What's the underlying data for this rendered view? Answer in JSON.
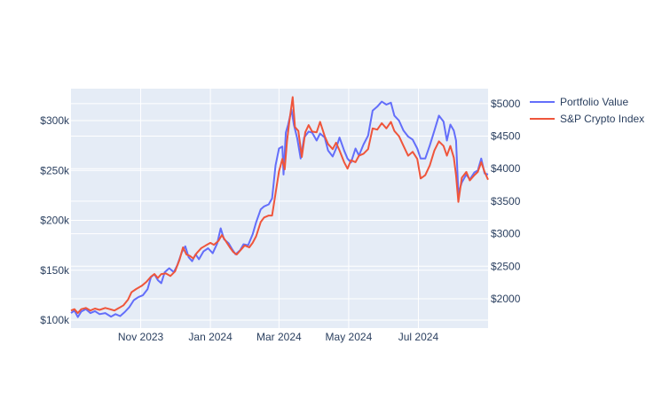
{
  "chart_data": {
    "type": "line",
    "title": "",
    "xlabel": "",
    "ylabel": "",
    "x_range": [
      "2023-09-01",
      "2024-08-31"
    ],
    "x_ticks": [
      "2023-11-01",
      "2024-01-01",
      "2024-03-01",
      "2024-05-01",
      "2024-07-01"
    ],
    "x_tick_labels": [
      "Nov 2023",
      "Jan 2024",
      "Mar 2024",
      "May 2024",
      "Jul 2024"
    ],
    "y_left": {
      "range": [
        92000,
        332000
      ],
      "ticks": [
        100000,
        150000,
        200000,
        250000,
        300000
      ],
      "tick_labels": [
        "$100k",
        "$150k",
        "$200k",
        "$250k",
        "$300k"
      ]
    },
    "y_right": {
      "range": [
        1550,
        5230
      ],
      "ticks": [
        2000,
        2500,
        3000,
        3500,
        4000,
        4500,
        5000
      ],
      "tick_labels": [
        "$2000",
        "$2500",
        "$3000",
        "$3500",
        "$4000",
        "$4500",
        "$5000"
      ]
    },
    "legend_position": "top-right",
    "grid": true,
    "series": [
      {
        "name": "Portfolio Value",
        "axis": "left",
        "color": "#636efa",
        "points": [
          [
            "2023-09-01",
            107000
          ],
          [
            "2023-09-04",
            109500
          ],
          [
            "2023-09-07",
            103000
          ],
          [
            "2023-09-10",
            108500
          ],
          [
            "2023-09-14",
            111000
          ],
          [
            "2023-09-18",
            107000
          ],
          [
            "2023-09-22",
            109000
          ],
          [
            "2023-09-26",
            106000
          ],
          [
            "2023-10-01",
            107000
          ],
          [
            "2023-10-06",
            103500
          ],
          [
            "2023-10-10",
            106000
          ],
          [
            "2023-10-14",
            104000
          ],
          [
            "2023-10-18",
            108000
          ],
          [
            "2023-10-22",
            113000
          ],
          [
            "2023-10-26",
            120000
          ],
          [
            "2023-10-30",
            123000
          ],
          [
            "2023-11-03",
            125000
          ],
          [
            "2023-11-07",
            131000
          ],
          [
            "2023-11-10",
            143000
          ],
          [
            "2023-11-13",
            146000
          ],
          [
            "2023-11-16",
            140000
          ],
          [
            "2023-11-19",
            137000
          ],
          [
            "2023-11-22",
            148000
          ],
          [
            "2023-11-26",
            152000
          ],
          [
            "2023-11-30",
            148000
          ],
          [
            "2023-12-03",
            155000
          ],
          [
            "2023-12-07",
            168000
          ],
          [
            "2023-12-10",
            174000
          ],
          [
            "2023-12-13",
            163000
          ],
          [
            "2023-12-16",
            159000
          ],
          [
            "2023-12-19",
            166000
          ],
          [
            "2023-12-22",
            161000
          ],
          [
            "2023-12-26",
            169000
          ],
          [
            "2023-12-30",
            172000
          ],
          [
            "2024-01-03",
            167000
          ],
          [
            "2024-01-07",
            177000
          ],
          [
            "2024-01-10",
            192000
          ],
          [
            "2024-01-13",
            181000
          ],
          [
            "2024-01-17",
            177000
          ],
          [
            "2024-01-20",
            171000
          ],
          [
            "2024-01-23",
            166000
          ],
          [
            "2024-01-27",
            170000
          ],
          [
            "2024-01-30",
            176000
          ],
          [
            "2024-02-03",
            175000
          ],
          [
            "2024-02-07",
            186000
          ],
          [
            "2024-02-10",
            198000
          ],
          [
            "2024-02-14",
            211000
          ],
          [
            "2024-02-17",
            214000
          ],
          [
            "2024-02-21",
            216000
          ],
          [
            "2024-02-24",
            222000
          ],
          [
            "2024-02-27",
            255000
          ],
          [
            "2024-03-01",
            272000
          ],
          [
            "2024-03-04",
            274000
          ],
          [
            "2024-03-05",
            246000
          ],
          [
            "2024-03-07",
            288000
          ],
          [
            "2024-03-09",
            296000
          ],
          [
            "2024-03-12",
            311000
          ],
          [
            "2024-03-14",
            296000
          ],
          [
            "2024-03-17",
            282000
          ],
          [
            "2024-03-20",
            262000
          ],
          [
            "2024-03-23",
            283000
          ],
          [
            "2024-03-27",
            289000
          ],
          [
            "2024-03-30",
            288000
          ],
          [
            "2024-04-03",
            280000
          ],
          [
            "2024-04-06",
            287000
          ],
          [
            "2024-04-10",
            283000
          ],
          [
            "2024-04-13",
            270000
          ],
          [
            "2024-04-17",
            264000
          ],
          [
            "2024-04-20",
            272000
          ],
          [
            "2024-04-23",
            283000
          ],
          [
            "2024-04-27",
            270000
          ],
          [
            "2024-04-30",
            262000
          ],
          [
            "2024-05-03",
            258000
          ],
          [
            "2024-05-07",
            272000
          ],
          [
            "2024-05-10",
            265000
          ],
          [
            "2024-05-14",
            276000
          ],
          [
            "2024-05-18",
            285000
          ],
          [
            "2024-05-22",
            310000
          ],
          [
            "2024-05-26",
            314000
          ],
          [
            "2024-05-30",
            319000
          ],
          [
            "2024-06-03",
            316000
          ],
          [
            "2024-06-07",
            318000
          ],
          [
            "2024-06-10",
            305000
          ],
          [
            "2024-06-14",
            300000
          ],
          [
            "2024-06-18",
            290000
          ],
          [
            "2024-06-22",
            284000
          ],
          [
            "2024-06-26",
            281000
          ],
          [
            "2024-06-30",
            272000
          ],
          [
            "2024-07-03",
            262000
          ],
          [
            "2024-07-07",
            262000
          ],
          [
            "2024-07-11",
            275000
          ],
          [
            "2024-07-15",
            290000
          ],
          [
            "2024-07-19",
            305000
          ],
          [
            "2024-07-23",
            299000
          ],
          [
            "2024-07-26",
            280000
          ],
          [
            "2024-07-29",
            296000
          ],
          [
            "2024-08-01",
            290000
          ],
          [
            "2024-08-03",
            280000
          ],
          [
            "2024-08-05",
            227000
          ],
          [
            "2024-08-08",
            238000
          ],
          [
            "2024-08-12",
            246000
          ],
          [
            "2024-08-15",
            241000
          ],
          [
            "2024-08-19",
            248000
          ],
          [
            "2024-08-22",
            250000
          ],
          [
            "2024-08-25",
            262000
          ],
          [
            "2024-08-28",
            247000
          ],
          [
            "2024-08-31",
            246000
          ]
        ]
      },
      {
        "name": "S&P Crypto Index",
        "axis": "right",
        "color": "#ef553b",
        "points": [
          [
            "2023-09-01",
            1820
          ],
          [
            "2023-09-04",
            1840
          ],
          [
            "2023-09-07",
            1780
          ],
          [
            "2023-09-10",
            1840
          ],
          [
            "2023-09-14",
            1860
          ],
          [
            "2023-09-18",
            1820
          ],
          [
            "2023-09-22",
            1850
          ],
          [
            "2023-09-26",
            1830
          ],
          [
            "2023-10-01",
            1860
          ],
          [
            "2023-10-05",
            1840
          ],
          [
            "2023-10-09",
            1820
          ],
          [
            "2023-10-13",
            1860
          ],
          [
            "2023-10-17",
            1900
          ],
          [
            "2023-10-21",
            1990
          ],
          [
            "2023-10-24",
            2100
          ],
          [
            "2023-10-28",
            2150
          ],
          [
            "2023-11-02",
            2200
          ],
          [
            "2023-11-06",
            2260
          ],
          [
            "2023-11-10",
            2340
          ],
          [
            "2023-11-13",
            2380
          ],
          [
            "2023-11-16",
            2320
          ],
          [
            "2023-11-19",
            2380
          ],
          [
            "2023-11-23",
            2390
          ],
          [
            "2023-11-27",
            2350
          ],
          [
            "2023-12-01",
            2420
          ],
          [
            "2023-12-05",
            2600
          ],
          [
            "2023-12-08",
            2790
          ],
          [
            "2023-12-11",
            2680
          ],
          [
            "2023-12-14",
            2660
          ],
          [
            "2023-12-17",
            2620
          ],
          [
            "2023-12-20",
            2700
          ],
          [
            "2023-12-24",
            2780
          ],
          [
            "2023-12-28",
            2820
          ],
          [
            "2024-01-01",
            2860
          ],
          [
            "2024-01-04",
            2830
          ],
          [
            "2024-01-08",
            2890
          ],
          [
            "2024-01-11",
            2980
          ],
          [
            "2024-01-14",
            2900
          ],
          [
            "2024-01-18",
            2790
          ],
          [
            "2024-01-21",
            2720
          ],
          [
            "2024-01-24",
            2680
          ],
          [
            "2024-01-28",
            2760
          ],
          [
            "2024-01-31",
            2820
          ],
          [
            "2024-02-04",
            2790
          ],
          [
            "2024-02-07",
            2860
          ],
          [
            "2024-02-10",
            2960
          ],
          [
            "2024-02-14",
            3180
          ],
          [
            "2024-02-17",
            3250
          ],
          [
            "2024-02-21",
            3280
          ],
          [
            "2024-02-24",
            3280
          ],
          [
            "2024-02-27",
            3620
          ],
          [
            "2024-03-01",
            3960
          ],
          [
            "2024-03-04",
            4150
          ],
          [
            "2024-03-06",
            3990
          ],
          [
            "2024-03-08",
            4420
          ],
          [
            "2024-03-10",
            4710
          ],
          [
            "2024-03-13",
            5100
          ],
          [
            "2024-03-15",
            4640
          ],
          [
            "2024-03-18",
            4580
          ],
          [
            "2024-03-21",
            4180
          ],
          [
            "2024-03-24",
            4560
          ],
          [
            "2024-03-27",
            4670
          ],
          [
            "2024-03-30",
            4570
          ],
          [
            "2024-04-03",
            4560
          ],
          [
            "2024-04-06",
            4720
          ],
          [
            "2024-04-10",
            4500
          ],
          [
            "2024-04-13",
            4380
          ],
          [
            "2024-04-17",
            4300
          ],
          [
            "2024-04-20",
            4400
          ],
          [
            "2024-04-23",
            4280
          ],
          [
            "2024-04-27",
            4100
          ],
          [
            "2024-04-30",
            4000
          ],
          [
            "2024-05-03",
            4130
          ],
          [
            "2024-05-07",
            4100
          ],
          [
            "2024-05-10",
            4200
          ],
          [
            "2024-05-14",
            4230
          ],
          [
            "2024-05-18",
            4300
          ],
          [
            "2024-05-22",
            4620
          ],
          [
            "2024-05-26",
            4600
          ],
          [
            "2024-05-30",
            4700
          ],
          [
            "2024-06-03",
            4620
          ],
          [
            "2024-06-07",
            4720
          ],
          [
            "2024-06-10",
            4580
          ],
          [
            "2024-06-14",
            4500
          ],
          [
            "2024-06-18",
            4350
          ],
          [
            "2024-06-22",
            4200
          ],
          [
            "2024-06-26",
            4260
          ],
          [
            "2024-06-30",
            4150
          ],
          [
            "2024-07-03",
            3850
          ],
          [
            "2024-07-07",
            3900
          ],
          [
            "2024-07-11",
            4050
          ],
          [
            "2024-07-15",
            4280
          ],
          [
            "2024-07-19",
            4420
          ],
          [
            "2024-07-23",
            4350
          ],
          [
            "2024-07-26",
            4200
          ],
          [
            "2024-07-29",
            4350
          ],
          [
            "2024-08-01",
            4170
          ],
          [
            "2024-08-03",
            3900
          ],
          [
            "2024-08-05",
            3490
          ],
          [
            "2024-08-08",
            3860
          ],
          [
            "2024-08-12",
            3950
          ],
          [
            "2024-08-15",
            3820
          ],
          [
            "2024-08-19",
            3900
          ],
          [
            "2024-08-22",
            3950
          ],
          [
            "2024-08-25",
            4100
          ],
          [
            "2024-08-28",
            3950
          ],
          [
            "2024-08-31",
            3830
          ]
        ]
      }
    ]
  }
}
